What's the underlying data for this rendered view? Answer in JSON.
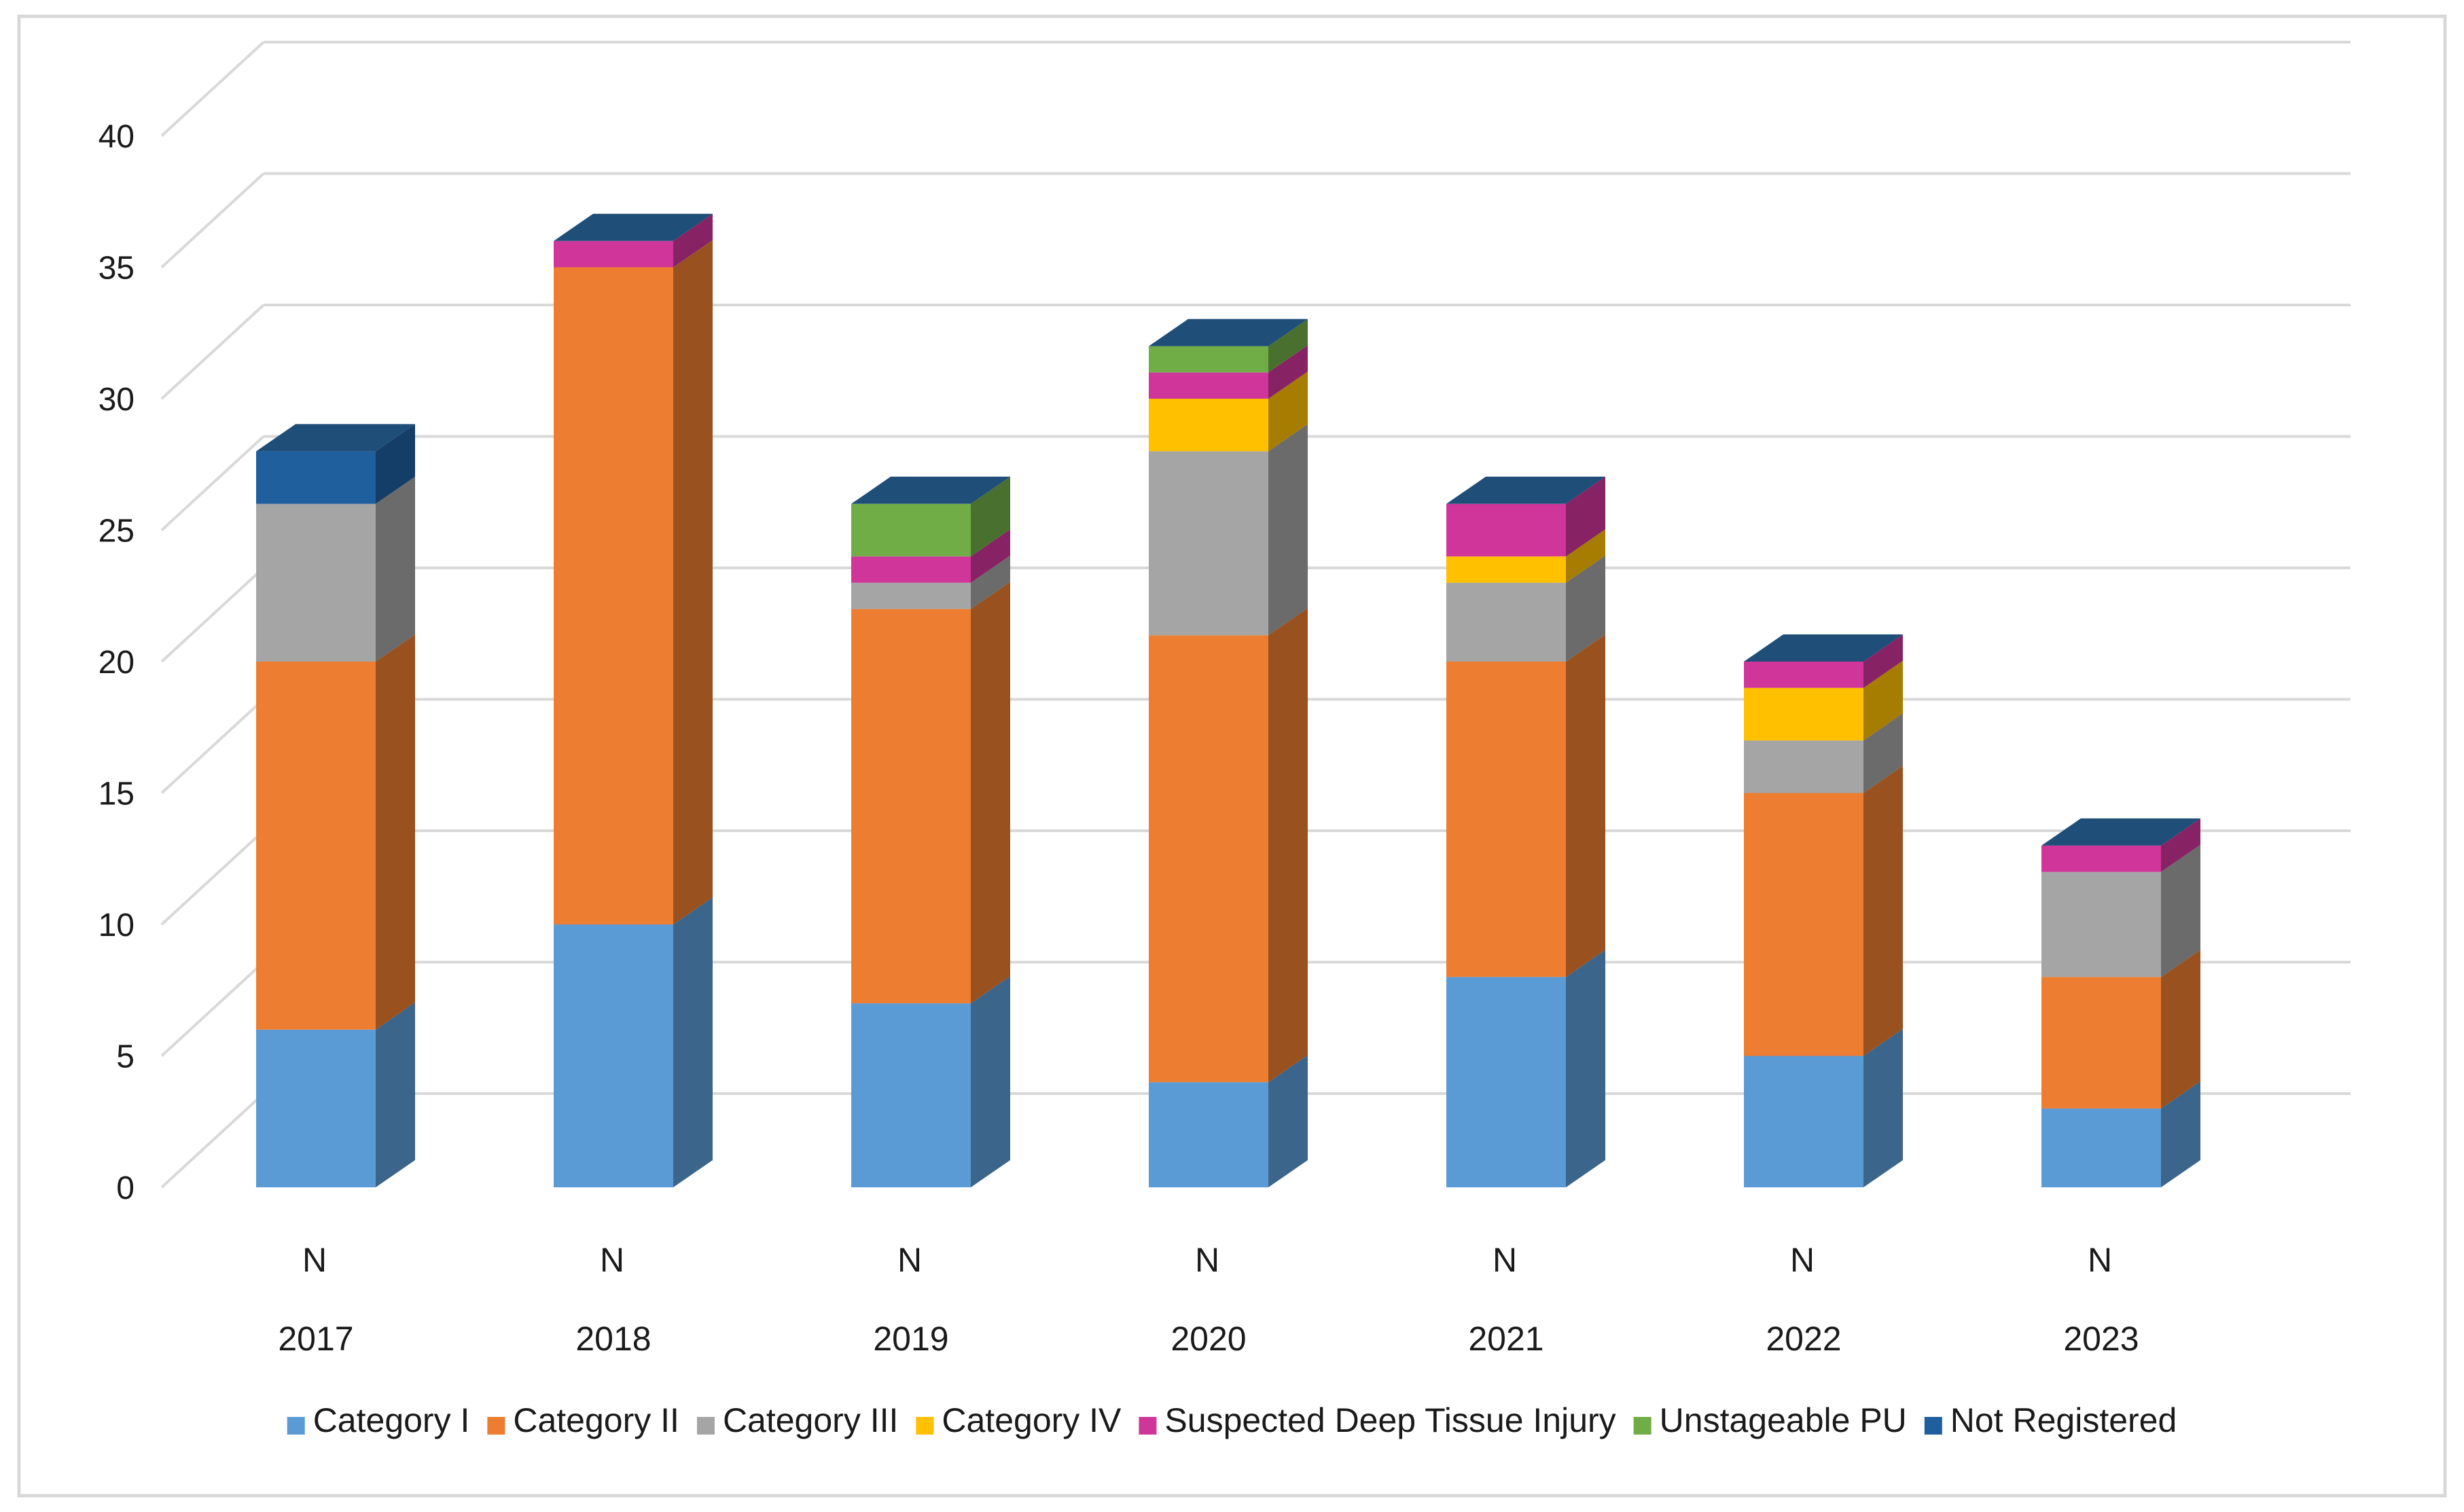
{
  "chart_data": {
    "type": "bar",
    "stacked": true,
    "three_d": true,
    "title": "",
    "xlabel": "",
    "ylabel": "",
    "ylim": [
      0,
      40
    ],
    "yticks": [
      0,
      5,
      10,
      15,
      20,
      25,
      30,
      35,
      40
    ],
    "grid": true,
    "legend_position": "bottom",
    "sub_labels": [
      "N",
      "N",
      "N",
      "N",
      "N",
      "N",
      "N"
    ],
    "categories": [
      "2017",
      "2018",
      "2019",
      "2020",
      "2021",
      "2022",
      "2023"
    ],
    "series": [
      {
        "name": "Category I",
        "color": "#5B9BD5",
        "values": [
          6,
          10,
          7,
          4,
          8,
          5,
          3
        ]
      },
      {
        "name": "Category II",
        "color": "#ED7D31",
        "values": [
          14,
          25,
          15,
          17,
          12,
          10,
          5
        ]
      },
      {
        "name": "Category III",
        "color": "#A5A5A5",
        "values": [
          6,
          0,
          1,
          7,
          3,
          2,
          4
        ]
      },
      {
        "name": "Category IV",
        "color": "#FFC000",
        "values": [
          0,
          0,
          0,
          2,
          1,
          2,
          0
        ]
      },
      {
        "name": "Suspected Deep Tissue Injury",
        "color": "#D0359A",
        "values": [
          0,
          1,
          1,
          1,
          2,
          1,
          1
        ]
      },
      {
        "name": "Unstageable PU",
        "color": "#70AD47",
        "values": [
          0,
          0,
          2,
          1,
          0,
          0,
          0
        ]
      },
      {
        "name": "Not Registered",
        "color": "#1F5F9E",
        "values": [
          2,
          0,
          0,
          0,
          0,
          0,
          0
        ]
      }
    ]
  }
}
